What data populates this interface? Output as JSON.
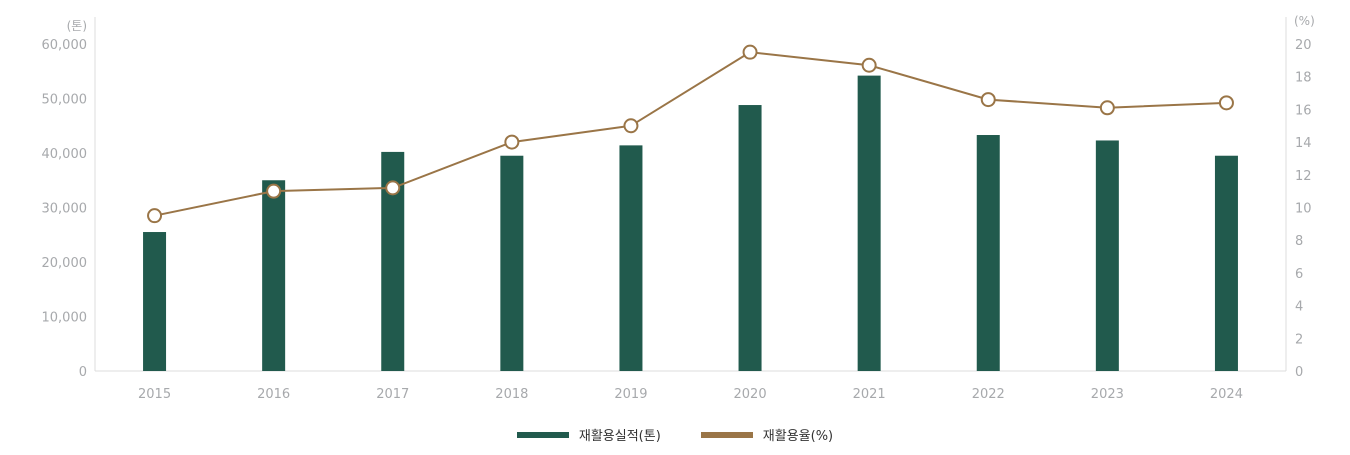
{
  "chart_data": {
    "type": "bar+line",
    "categories": [
      "2015",
      "2016",
      "2017",
      "2018",
      "2019",
      "2020",
      "2021",
      "2022",
      "2023",
      "2024"
    ],
    "series": [
      {
        "name": "재활용실적(톤)",
        "type": "bar",
        "axis": "left",
        "color": "#215a4d",
        "values": [
          25500,
          35000,
          40200,
          39500,
          41400,
          48800,
          54200,
          43300,
          42300,
          39500
        ]
      },
      {
        "name": "재활용율(%)",
        "type": "line",
        "axis": "right",
        "color": "#9a7547",
        "values": [
          9.5,
          11.0,
          11.2,
          14.0,
          15.0,
          19.5,
          18.7,
          16.6,
          16.1,
          16.4
        ]
      }
    ],
    "left_axis": {
      "unit": "(톤)",
      "ticks": [
        "0",
        "10,000",
        "20,000",
        "30,000",
        "40,000",
        "50,000",
        "60,000"
      ],
      "ylim": [
        0,
        60000
      ]
    },
    "right_axis": {
      "unit": "(%)",
      "ticks": [
        "0",
        "2",
        "4",
        "6",
        "8",
        "10",
        "12",
        "14",
        "16",
        "18",
        "20"
      ],
      "ylim": [
        0,
        20
      ]
    },
    "legend_position": "bottom-center",
    "grid": false
  }
}
